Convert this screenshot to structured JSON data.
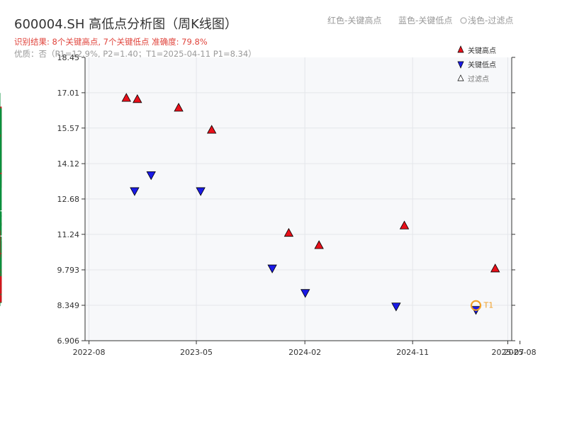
{
  "header": {
    "title": "600004.SH 高低点分析图（周K线图）",
    "result_line": "识别结果: 8个关键高点, 7个关键低点   准确度: 79.8%",
    "quality_line": "优质：否（P1=12.9%, P2=1.40；T1=2025-04-11 P1=8.34）",
    "legend_hint_high": "红色-关键高点",
    "legend_hint_low": "蓝色-关键低点",
    "legend_hint_filtered": "浅色-过滤点"
  },
  "legend": {
    "high": "关键高点",
    "low": "关键低点",
    "filtered": "过滤点"
  },
  "colors": {
    "up": "#d4141b",
    "down": "#0a8f3c",
    "high_marker": "#e8101a",
    "low_marker": "#1a1ae6",
    "t1": "#f0a028",
    "title": "#333333",
    "result": "#e0443c",
    "muted": "#999999",
    "plot_bg": "#f7f8fa"
  },
  "chart_data": {
    "type": "candlestick",
    "ylim": [
      6.906,
      18.45
    ],
    "yticks": [
      "18.45",
      "17.01",
      "15.57",
      "14.12",
      "12.68",
      "11.24",
      "9.793",
      "8.349",
      "6.906"
    ],
    "xticks": [
      "2022-08",
      "2023-05",
      "2024-02",
      "2024-11",
      "2025-07",
      "2025-08"
    ],
    "grid": true,
    "legend_position": "top-right",
    "key_highs": [
      {
        "date": "2022-11-04",
        "price": 16.6
      },
      {
        "date": "2022-12-02",
        "price": 16.55
      },
      {
        "date": "2023-03-17",
        "price": 16.2
      },
      {
        "date": "2023-06-09",
        "price": 15.3
      },
      {
        "date": "2023-12-22",
        "price": 11.1
      },
      {
        "date": "2024-03-08",
        "price": 10.6
      },
      {
        "date": "2024-10-11",
        "price": 11.4
      },
      {
        "date": "2025-05-30",
        "price": 9.65
      }
    ],
    "key_lows": [
      {
        "date": "2022-11-25",
        "price": 13.2
      },
      {
        "date": "2023-01-06",
        "price": 13.85
      },
      {
        "date": "2023-05-12",
        "price": 13.2
      },
      {
        "date": "2023-11-10",
        "price": 10.05
      },
      {
        "date": "2024-02-02",
        "price": 9.05
      },
      {
        "date": "2024-09-20",
        "price": 8.5
      },
      {
        "date": "2025-04-11",
        "price": 8.36
      }
    ],
    "t1": {
      "label": "T1",
      "date": "2025-04-11",
      "price": 8.34
    }
  }
}
